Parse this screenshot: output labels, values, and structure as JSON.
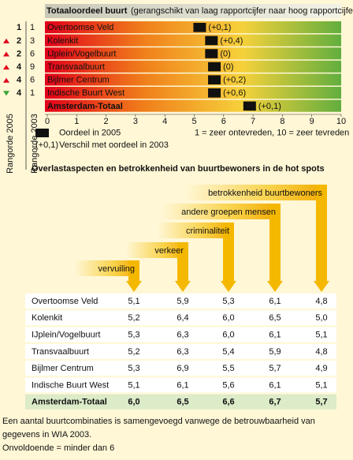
{
  "chart_data": {
    "type": "bar",
    "title": "Totaaloordeel buurt",
    "subtitle": "(gerangschikt van laag rapportcijfer naar hoog rapportcijfer)",
    "categories": [
      "Overtoomse Veld",
      "Kolenkit",
      "IJplein/Vogelbuurt",
      "Transvaalbuurt",
      "Bijlmer Centrum",
      "Indische Buurt West",
      "Amsterdam-Totaal"
    ],
    "values": [
      5.4,
      5.8,
      5.8,
      5.9,
      5.9,
      5.9,
      7.1
    ],
    "value_labels": [
      "5,4",
      "5,8",
      "5,8",
      "5,9",
      "5,9",
      "5,9",
      "7,1"
    ],
    "changes": [
      "(+0,1)",
      "(+0,4)",
      "(0)",
      "(0)",
      "(+0,2)",
      "(+0,6)",
      "(+0,1)"
    ],
    "rank_2005": [
      1,
      2,
      2,
      4,
      4,
      4,
      null
    ],
    "rank_2003": [
      1,
      3,
      6,
      9,
      6,
      1,
      null
    ],
    "trend": [
      null,
      "up",
      "up",
      "up",
      "up",
      "down",
      null
    ],
    "rank_2005_label": "Rangorde 2005",
    "rank_2003_label": "Rangorde 2003",
    "xlim": [
      0,
      10
    ],
    "xticks": [
      0,
      1,
      2,
      3,
      4,
      5,
      6,
      7,
      8,
      9,
      10
    ],
    "colors": [
      "#e2001a",
      "#f07f1b",
      "#f6d13b",
      "#62ae3e"
    ],
    "legend": {
      "sample_value": "7",
      "sample_change": "(+0,1)",
      "value_text": "Oordeel in 2005",
      "change_text": "Verschil met oordeel in 2003",
      "scale_text": "1 = zeer ontevreden, 10 = zeer tevreden"
    }
  },
  "table": {
    "title": "Overlastaspecten en betrokkenheid van buurtbewoners in de hot spots",
    "columns": [
      "vervuiling",
      "verkeer",
      "criminaliteit",
      "andere groepen mensen",
      "betrokkenheid buurtbewoners"
    ],
    "rows": [
      [
        "Overtoomse Veld",
        "5,1",
        "5,9",
        "5,3",
        "6,1",
        "4,8"
      ],
      [
        "Kolenkit",
        "5,2",
        "6,4",
        "6,0",
        "6,5",
        "5,0"
      ],
      [
        "IJplein/Vogelbuurt",
        "5,3",
        "6,3",
        "6,0",
        "6,1",
        "5,1"
      ],
      [
        "Transvaalbuurt",
        "5,2",
        "6,3",
        "5,4",
        "5,9",
        "4,8"
      ],
      [
        "Bijlmer Centrum",
        "5,3",
        "6,9",
        "5,5",
        "5,7",
        "4,9"
      ],
      [
        "Indische Buurt West",
        "5,1",
        "6,1",
        "5,6",
        "6,1",
        "5,1"
      ],
      [
        "Amsterdam-Totaal",
        "6,0",
        "6,5",
        "6,6",
        "6,7",
        "5,7"
      ]
    ]
  },
  "footnote": [
    "Een aantal buurtcombinaties is samengevoegd vanwege de betrouwbaarheid van",
    "gegevens in WIA 2003.",
    "Onvoldoende = minder dan 6"
  ]
}
